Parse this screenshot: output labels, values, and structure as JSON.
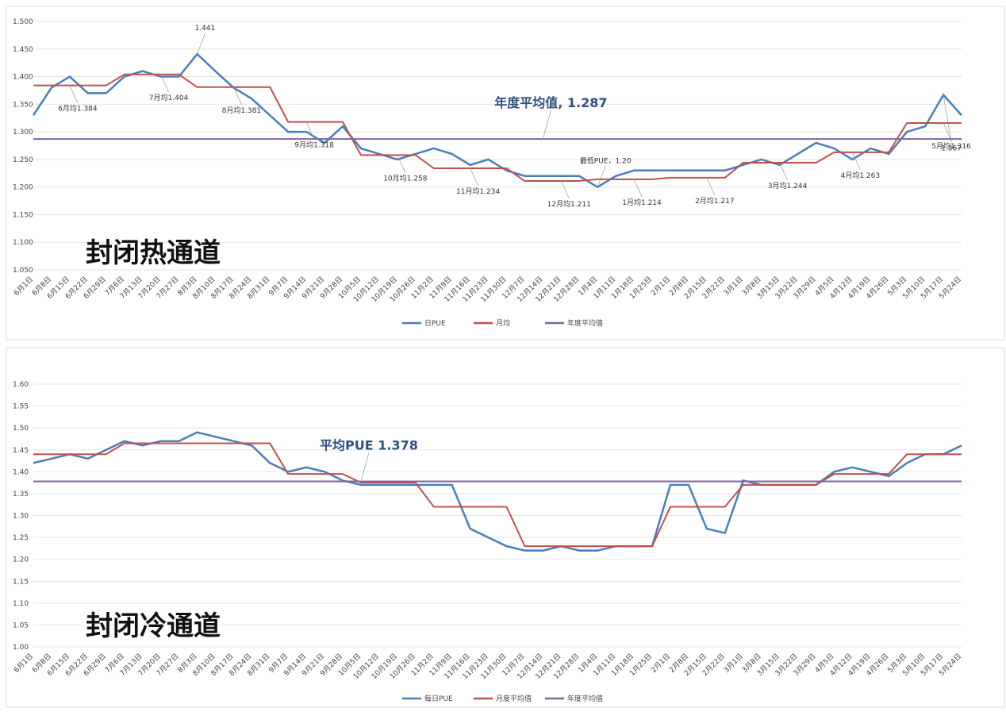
{
  "chart_data": [
    {
      "type": "line",
      "title": "封闭热通道",
      "categories": [
        "6月1日",
        "6月8日",
        "6月15日",
        "6月22日",
        "6月29日",
        "7月6日",
        "7月13日",
        "7月20日",
        "7月27日",
        "8月3日",
        "8月10日",
        "8月17日",
        "8月24日",
        "8月31日",
        "9月7日",
        "9月14日",
        "9月21日",
        "9月28日",
        "10月5日",
        "10月12日",
        "10月19日",
        "10月26日",
        "11月2日",
        "11月9日",
        "11月16日",
        "11月23日",
        "11月30日",
        "12月7日",
        "12月14日",
        "12月21日",
        "12月28日",
        "1月4日",
        "1月11日",
        "1月18日",
        "1月25日",
        "2月1日",
        "2月8日",
        "2月15日",
        "2月22日",
        "3月1日",
        "3月8日",
        "3月15日",
        "3月22日",
        "3月29日",
        "4月5日",
        "4月12日",
        "4月19日",
        "4月26日",
        "5月3日",
        "5月10日",
        "5月17日",
        "5月24日"
      ],
      "series": [
        {
          "name": "日PUE",
          "color": "#4a7ebb",
          "values": [
            1.33,
            1.38,
            1.4,
            1.37,
            1.37,
            1.4,
            1.41,
            1.4,
            1.4,
            1.441,
            1.41,
            1.38,
            1.36,
            1.33,
            1.3,
            1.3,
            1.28,
            1.31,
            1.27,
            1.26,
            1.25,
            1.26,
            1.27,
            1.26,
            1.24,
            1.25,
            1.23,
            1.22,
            1.22,
            1.22,
            1.22,
            1.2,
            1.22,
            1.23,
            1.23,
            1.23,
            1.23,
            1.23,
            1.23,
            1.24,
            1.25,
            1.24,
            1.26,
            1.28,
            1.27,
            1.25,
            1.27,
            1.26,
            1.3,
            1.31,
            1.367,
            1.33
          ],
          "value_labels": [
            null,
            null,
            null,
            null,
            null,
            null,
            null,
            null,
            null,
            "1.441",
            null,
            null,
            null,
            null,
            null,
            null,
            null,
            null,
            null,
            null,
            null,
            null,
            null,
            null,
            null,
            null,
            null,
            null,
            null,
            null,
            null,
            "最低PUE，1.20",
            null,
            null,
            null,
            null,
            null,
            null,
            null,
            null,
            null,
            null,
            null,
            null,
            null,
            null,
            null,
            null,
            null,
            null,
            "1.367",
            null
          ]
        },
        {
          "name": "月均",
          "color": "#c0504d",
          "values": [
            1.384,
            1.384,
            1.384,
            1.384,
            1.384,
            1.404,
            1.404,
            1.404,
            1.404,
            1.381,
            1.381,
            1.381,
            1.381,
            1.381,
            1.318,
            1.318,
            1.318,
            1.318,
            1.258,
            1.258,
            1.258,
            1.258,
            1.234,
            1.234,
            1.234,
            1.234,
            1.234,
            1.211,
            1.211,
            1.211,
            1.211,
            1.214,
            1.214,
            1.214,
            1.214,
            1.217,
            1.217,
            1.217,
            1.217,
            1.244,
            1.244,
            1.244,
            1.244,
            1.244,
            1.263,
            1.263,
            1.263,
            1.263,
            1.316,
            1.316,
            1.316,
            1.316
          ],
          "value_labels": [
            null,
            null,
            "6月均1.384",
            null,
            null,
            null,
            null,
            "7月均1.404",
            null,
            null,
            null,
            "8月均1.381",
            null,
            null,
            null,
            "9月均1.318",
            null,
            null,
            null,
            null,
            "10月均1.258",
            null,
            null,
            null,
            "11月均1.234",
            null,
            null,
            null,
            null,
            "12月均1.211",
            null,
            null,
            null,
            "1月均1.214",
            null,
            null,
            null,
            "2月均1.217",
            null,
            null,
            null,
            "3月均1.244",
            null,
            null,
            null,
            "4月均1.263",
            null,
            null,
            null,
            null,
            "5月均1.316",
            null
          ]
        },
        {
          "name": "年度平均值",
          "color": "#8064a2",
          "values": [
            1.287,
            1.287,
            1.287,
            1.287,
            1.287,
            1.287,
            1.287,
            1.287,
            1.287,
            1.287,
            1.287,
            1.287,
            1.287,
            1.287,
            1.287,
            1.287,
            1.287,
            1.287,
            1.287,
            1.287,
            1.287,
            1.287,
            1.287,
            1.287,
            1.287,
            1.287,
            1.287,
            1.287,
            1.287,
            1.287,
            1.287,
            1.287,
            1.287,
            1.287,
            1.287,
            1.287,
            1.287,
            1.287,
            1.287,
            1.287,
            1.287,
            1.287,
            1.287,
            1.287,
            1.287,
            1.287,
            1.287,
            1.287,
            1.287,
            1.287,
            1.287,
            1.287
          ],
          "value_labels": [
            null,
            null,
            null,
            null,
            null,
            null,
            null,
            null,
            null,
            null,
            null,
            null,
            null,
            null,
            null,
            null,
            null,
            null,
            null,
            null,
            null,
            null,
            null,
            null,
            null,
            null,
            null,
            null,
            "年度平均值, 1.287",
            null,
            null,
            null,
            null,
            null,
            null,
            null,
            null,
            null,
            null,
            null,
            null,
            null,
            null,
            null,
            null,
            null,
            null,
            null,
            null,
            null,
            null,
            null
          ]
        }
      ],
      "ylim": [
        1.05,
        1.5
      ],
      "yticks": [
        {
          "value": 1.05,
          "label": "1.050"
        },
        {
          "value": 1.1,
          "label": "1.100"
        },
        {
          "value": 1.15,
          "label": "1.150"
        },
        {
          "value": 1.2,
          "label": "1.200"
        },
        {
          "value": 1.25,
          "label": "1.250"
        },
        {
          "value": 1.3,
          "label": "1.300"
        },
        {
          "value": 1.35,
          "label": "1.350"
        },
        {
          "value": 1.4,
          "label": "1.400"
        },
        {
          "value": 1.45,
          "label": "1.450"
        },
        {
          "value": 1.5,
          "label": "1.500"
        }
      ],
      "grid": true,
      "legend": "bottom"
    },
    {
      "type": "line",
      "title": "封闭冷通道",
      "categories": [
        "6月1日",
        "6月8日",
        "6月15日",
        "6月22日",
        "6月29日",
        "7月6日",
        "7月13日",
        "7月20日",
        "7月27日",
        "8月3日",
        "8月10日",
        "8月17日",
        "8月24日",
        "8月31日",
        "9月7日",
        "9月14日",
        "9月21日",
        "9月28日",
        "10月5日",
        "10月12日",
        "10月19日",
        "10月26日",
        "11月2日",
        "11月9日",
        "11月16日",
        "11月23日",
        "11月30日",
        "12月7日",
        "12月14日",
        "12月21日",
        "12月28日",
        "1月4日",
        "1月11日",
        "1月18日",
        "1月25日",
        "2月1日",
        "2月8日",
        "2月15日",
        "2月22日",
        "3月1日",
        "3月8日",
        "3月15日",
        "3月22日",
        "3月29日",
        "4月5日",
        "4月12日",
        "4月19日",
        "4月26日",
        "5月3日",
        "5月10日",
        "5月17日",
        "5月24日"
      ],
      "series": [
        {
          "name": "每日PUE",
          "color": "#4a7ebb",
          "values": [
            1.42,
            1.43,
            1.44,
            1.43,
            1.45,
            1.47,
            1.46,
            1.47,
            1.47,
            1.49,
            1.48,
            1.47,
            1.46,
            1.42,
            1.4,
            1.41,
            1.4,
            1.38,
            1.37,
            1.37,
            1.37,
            1.37,
            1.37,
            1.37,
            1.27,
            1.25,
            1.23,
            1.22,
            1.22,
            1.23,
            1.22,
            1.22,
            1.23,
            1.23,
            1.23,
            1.37,
            1.37,
            1.27,
            1.26,
            1.38,
            1.37,
            1.37,
            1.37,
            1.37,
            1.4,
            1.41,
            1.4,
            1.39,
            1.42,
            1.44,
            1.44,
            1.46
          ]
        },
        {
          "name": "月度平均值",
          "color": "#c0504d",
          "values": [
            1.44,
            1.44,
            1.44,
            1.44,
            1.44,
            1.465,
            1.465,
            1.465,
            1.465,
            1.465,
            1.465,
            1.465,
            1.465,
            1.465,
            1.395,
            1.395,
            1.395,
            1.395,
            1.375,
            1.375,
            1.375,
            1.375,
            1.32,
            1.32,
            1.32,
            1.32,
            1.32,
            1.23,
            1.23,
            1.23,
            1.23,
            1.23,
            1.23,
            1.23,
            1.23,
            1.32,
            1.32,
            1.32,
            1.32,
            1.37,
            1.37,
            1.37,
            1.37,
            1.37,
            1.395,
            1.395,
            1.395,
            1.395,
            1.44,
            1.44,
            1.44,
            1.44
          ]
        },
        {
          "name": "年度平均值",
          "color": "#8064a2",
          "values": [
            1.378,
            1.378,
            1.378,
            1.378,
            1.378,
            1.378,
            1.378,
            1.378,
            1.378,
            1.378,
            1.378,
            1.378,
            1.378,
            1.378,
            1.378,
            1.378,
            1.378,
            1.378,
            1.378,
            1.378,
            1.378,
            1.378,
            1.378,
            1.378,
            1.378,
            1.378,
            1.378,
            1.378,
            1.378,
            1.378,
            1.378,
            1.378,
            1.378,
            1.378,
            1.378,
            1.378,
            1.378,
            1.378,
            1.378,
            1.378,
            1.378,
            1.378,
            1.378,
            1.378,
            1.378,
            1.378,
            1.378,
            1.378,
            1.378,
            1.378,
            1.378,
            1.378
          ],
          "value_labels": [
            null,
            null,
            null,
            null,
            null,
            null,
            null,
            null,
            null,
            null,
            null,
            null,
            null,
            null,
            null,
            null,
            null,
            null,
            "平均PUE 1.378",
            null,
            null,
            null,
            null,
            null,
            null,
            null,
            null,
            null,
            null,
            null,
            null,
            null,
            null,
            null,
            null,
            null,
            null,
            null,
            null,
            null,
            null,
            null,
            null,
            null,
            null,
            null,
            null,
            null,
            null,
            null,
            null,
            null
          ]
        }
      ],
      "ylim": [
        1.0,
        1.6
      ],
      "yticks": [
        {
          "value": 1.0,
          "label": "1.00"
        },
        {
          "value": 1.05,
          "label": "1.05"
        },
        {
          "value": 1.1,
          "label": "1.10"
        },
        {
          "value": 1.15,
          "label": "1.15"
        },
        {
          "value": 1.2,
          "label": "1.20"
        },
        {
          "value": 1.25,
          "label": "1.25"
        },
        {
          "value": 1.3,
          "label": "1.30"
        },
        {
          "value": 1.35,
          "label": "1.35"
        },
        {
          "value": 1.4,
          "label": "1.40"
        },
        {
          "value": 1.45,
          "label": "1.45"
        },
        {
          "value": 1.5,
          "label": "1.50"
        },
        {
          "value": 1.55,
          "label": "1.55"
        },
        {
          "value": 1.6,
          "label": "1.60"
        }
      ],
      "grid": true,
      "legend": "bottom"
    }
  ]
}
